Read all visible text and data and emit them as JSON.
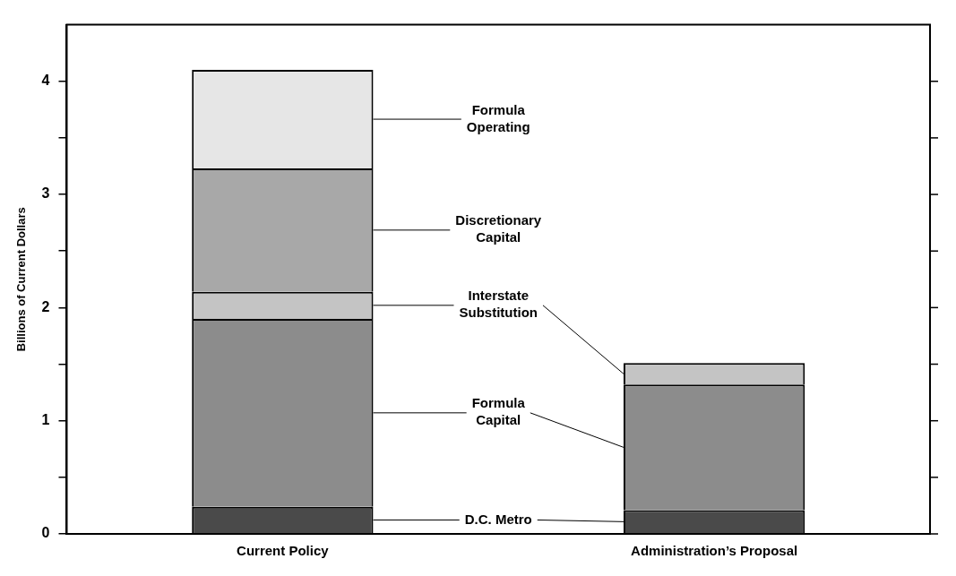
{
  "chart_data": {
    "type": "bar",
    "stacked": true,
    "ylabel": "Billions of Current Dollars",
    "categories": [
      "Current Policy",
      "Administration’s Proposal"
    ],
    "series": [
      {
        "name": "D.C. Metro",
        "color": "#4a4a4a",
        "values": [
          0.24,
          0.21
        ]
      },
      {
        "name": "Formula Capital",
        "color": "#8c8c8c",
        "values": [
          1.66,
          1.11
        ]
      },
      {
        "name": "Interstate Substitution",
        "color": "#c4c4c4",
        "values": [
          0.24,
          0.19
        ]
      },
      {
        "name": "Discretionary Capital",
        "color": "#a8a8a8",
        "values": [
          1.09,
          0
        ]
      },
      {
        "name": "Formula Operating",
        "color": "#e6e6e6",
        "values": [
          0.87,
          0
        ]
      }
    ],
    "ylim": [
      0,
      4.5
    ],
    "yticks": [
      0,
      {
        "value": 0.5,
        "label": null
      },
      1,
      {
        "value": 1.5,
        "label": null
      },
      2,
      {
        "value": 2.5,
        "label": null
      },
      3,
      {
        "value": 3.5,
        "label": null
      },
      4
    ],
    "grid": false,
    "legend": false
  }
}
